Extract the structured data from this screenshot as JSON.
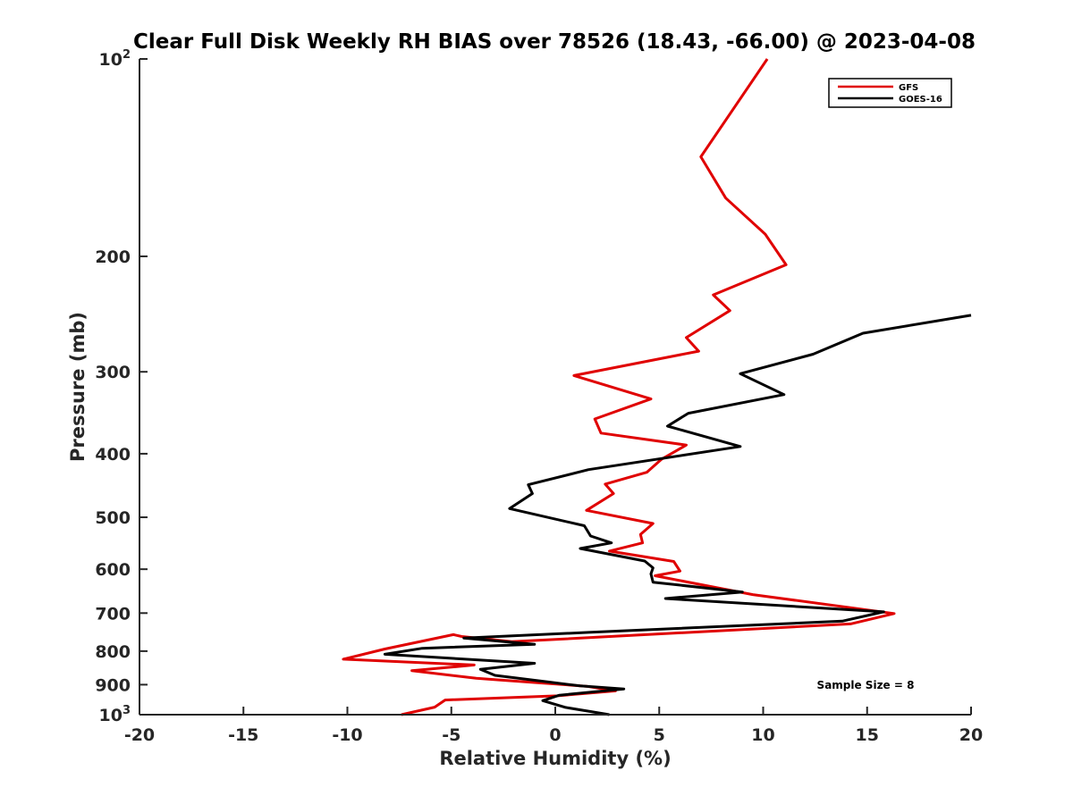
{
  "chart_data": {
    "type": "line",
    "title": "Clear Full Disk Weekly RH BIAS over 78526 (18.43, -66.00) @ 2023-04-08",
    "xlabel": "Relative Humidity (%)",
    "ylabel": "Pressure (mb)",
    "xlim": [
      -20,
      20
    ],
    "ylim": [
      100,
      1000
    ],
    "y_scale": "log",
    "y_reversed": true,
    "grid": false,
    "legend_position": "top-right",
    "x_ticks": [
      "-20",
      "-15",
      "-10",
      "-5",
      "0",
      "5",
      "10",
      "15",
      "20"
    ],
    "y_ticks": [
      {
        "value": 100,
        "base": "10",
        "exp": "2"
      },
      {
        "value": 200,
        "label": "200"
      },
      {
        "value": 300,
        "label": "300"
      },
      {
        "value": 400,
        "label": "400"
      },
      {
        "value": 500,
        "label": "500"
      },
      {
        "value": 600,
        "label": "600"
      },
      {
        "value": 700,
        "label": "700"
      },
      {
        "value": 800,
        "label": "800"
      },
      {
        "value": 900,
        "label": "900"
      },
      {
        "value": 1000,
        "base": "10",
        "exp": "3"
      }
    ],
    "annotation": "Sample Size = 8",
    "series": [
      {
        "name": "GFS",
        "color": "#e00000",
        "points": [
          [
            10.2,
            100
          ],
          [
            7.0,
            141
          ],
          [
            8.2,
            163
          ],
          [
            10.1,
            185
          ],
          [
            11.1,
            206
          ],
          [
            7.6,
            229
          ],
          [
            8.4,
            242
          ],
          [
            6.3,
            266
          ],
          [
            6.9,
            279
          ],
          [
            0.9,
            304
          ],
          [
            4.6,
            330
          ],
          [
            1.9,
            354
          ],
          [
            2.2,
            372
          ],
          [
            6.3,
            388
          ],
          [
            5.1,
            408
          ],
          [
            4.4,
            427
          ],
          [
            2.4,
            445
          ],
          [
            2.8,
            460
          ],
          [
            1.5,
            488
          ],
          [
            4.7,
            511
          ],
          [
            4.1,
            531
          ],
          [
            4.2,
            547
          ],
          [
            2.6,
            563
          ],
          [
            5.7,
            584
          ],
          [
            6.0,
            604
          ],
          [
            4.8,
            614
          ],
          [
            9.5,
            656
          ],
          [
            16.3,
            701
          ],
          [
            14.2,
            727
          ],
          [
            -2.1,
            774
          ],
          [
            -4.5,
            760
          ],
          [
            -4.9,
            755
          ],
          [
            -8.2,
            794
          ],
          [
            -10.2,
            823
          ],
          [
            -3.9,
            840
          ],
          [
            -6.9,
            857
          ],
          [
            -3.8,
            880
          ],
          [
            1.5,
            905
          ],
          [
            2.9,
            920
          ],
          [
            0.1,
            936
          ],
          [
            -5.3,
            950
          ],
          [
            -5.8,
            974
          ],
          [
            -7.4,
            1000
          ]
        ]
      },
      {
        "name": "GOES-16",
        "color": "#000000",
        "points": [
          [
            20.0,
            246
          ],
          [
            14.8,
            262
          ],
          [
            12.4,
            282
          ],
          [
            8.9,
            302
          ],
          [
            11.0,
            325
          ],
          [
            6.4,
            347
          ],
          [
            5.4,
            363
          ],
          [
            8.9,
            390
          ],
          [
            1.6,
            423
          ],
          [
            -1.3,
            446
          ],
          [
            -1.1,
            460
          ],
          [
            -2.2,
            485
          ],
          [
            1.4,
            515
          ],
          [
            1.7,
            534
          ],
          [
            2.7,
            547
          ],
          [
            1.2,
            558
          ],
          [
            4.3,
            583
          ],
          [
            4.7,
            597
          ],
          [
            4.6,
            610
          ],
          [
            4.7,
            628
          ],
          [
            9.0,
            650
          ],
          [
            5.3,
            665
          ],
          [
            15.8,
            697
          ],
          [
            13.8,
            720
          ],
          [
            1.6,
            749
          ],
          [
            -4.4,
            764
          ],
          [
            -1.0,
            781
          ],
          [
            -6.4,
            792
          ],
          [
            -8.2,
            809
          ],
          [
            -1.0,
            835
          ],
          [
            -3.6,
            853
          ],
          [
            -2.9,
            871
          ],
          [
            1.2,
            904
          ],
          [
            3.3,
            914
          ],
          [
            0.2,
            934
          ],
          [
            -0.6,
            952
          ],
          [
            0.5,
            975
          ],
          [
            2.6,
            1000
          ]
        ]
      }
    ]
  }
}
